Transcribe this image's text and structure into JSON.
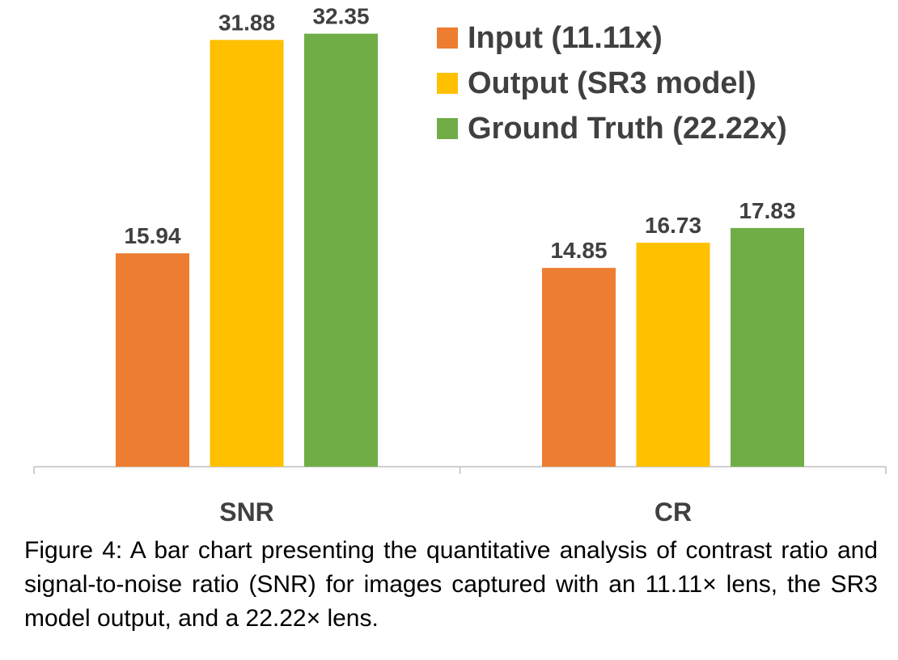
{
  "chart_data": {
    "type": "bar",
    "categories": [
      "SNR",
      "CR"
    ],
    "series": [
      {
        "name": "Input (11.11x)",
        "values": [
          15.94,
          14.85
        ],
        "color": "#ED7D31"
      },
      {
        "name": "Output (SR3 model)",
        "values": [
          31.88,
          16.73
        ],
        "color": "#FFC000"
      },
      {
        "name": "Ground Truth (22.22x)",
        "values": [
          32.35,
          17.83
        ],
        "color": "#70AD47"
      }
    ],
    "value_labels": [
      [
        "15.94",
        "14.85"
      ],
      [
        "31.88",
        "16.73"
      ],
      [
        "32.35",
        "17.83"
      ]
    ],
    "ylim": [
      0,
      35
    ],
    "grid": false,
    "legend_position": "top-right",
    "axis_color": "#BFBFBF",
    "label_color": "#404040"
  },
  "caption": "Figure 4: A bar chart presenting the quantitative analysis of contrast ratio and signal-to-noise ratio (SNR) for images captured with an 11.11× lens, the SR3 model output, and a 22.22× lens."
}
